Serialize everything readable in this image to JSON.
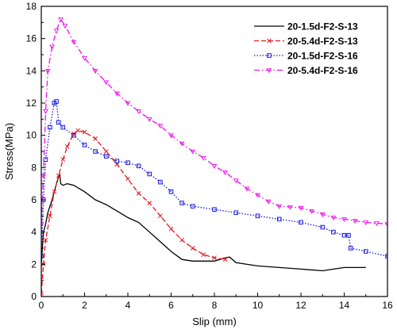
{
  "chart_data": {
    "type": "line",
    "title": "",
    "xlabel": "Slip (mm)",
    "ylabel": "Stress(MPa)",
    "xlim": [
      0,
      16
    ],
    "ylim": [
      0,
      18
    ],
    "xticks": [
      0,
      2,
      4,
      6,
      8,
      10,
      12,
      14,
      16
    ],
    "yticks": [
      0,
      2,
      4,
      6,
      8,
      10,
      12,
      14,
      16,
      18
    ],
    "grid": false,
    "legend_position": "top-right",
    "series": [
      {
        "name": "20-1.5d-F2-S-13",
        "color": "#000000",
        "marker": "none",
        "dash": "solid",
        "points": [
          [
            0,
            2.0
          ],
          [
            0.1,
            4.0
          ],
          [
            0.2,
            4.5
          ],
          [
            0.3,
            5.2
          ],
          [
            0.5,
            6.0
          ],
          [
            0.7,
            7.0
          ],
          [
            0.85,
            7.6
          ],
          [
            0.9,
            7.0
          ],
          [
            1.0,
            6.9
          ],
          [
            1.2,
            7.0
          ],
          [
            1.5,
            6.9
          ],
          [
            2.0,
            6.5
          ],
          [
            2.5,
            6.0
          ],
          [
            3.0,
            5.7
          ],
          [
            3.5,
            5.3
          ],
          [
            4.0,
            4.9
          ],
          [
            4.5,
            4.6
          ],
          [
            5.0,
            4.0
          ],
          [
            5.5,
            3.4
          ],
          [
            6.0,
            2.8
          ],
          [
            6.5,
            2.3
          ],
          [
            7.0,
            2.2
          ],
          [
            8.0,
            2.2
          ],
          [
            8.5,
            2.4
          ],
          [
            8.7,
            2.45
          ],
          [
            9.0,
            2.1
          ],
          [
            10.0,
            1.9
          ],
          [
            11.0,
            1.8
          ],
          [
            12.0,
            1.7
          ],
          [
            13.0,
            1.6
          ],
          [
            14.0,
            1.8
          ],
          [
            15.0,
            1.8
          ]
        ]
      },
      {
        "name": "20-5.4d-F2-S-13",
        "color": "#e8141b",
        "marker": "x",
        "dash": "dashed",
        "points": [
          [
            0,
            0.2
          ],
          [
            0.1,
            2.0
          ],
          [
            0.2,
            3.5
          ],
          [
            0.4,
            5.0
          ],
          [
            0.6,
            6.5
          ],
          [
            0.8,
            7.5
          ],
          [
            1.0,
            8.5
          ],
          [
            1.2,
            9.3
          ],
          [
            1.5,
            10.1
          ],
          [
            1.7,
            10.3
          ],
          [
            2.0,
            10.2
          ],
          [
            2.5,
            9.8
          ],
          [
            3.0,
            9.0
          ],
          [
            3.5,
            8.2
          ],
          [
            4.0,
            7.3
          ],
          [
            4.5,
            6.4
          ],
          [
            5.0,
            5.8
          ],
          [
            5.5,
            5.0
          ],
          [
            6.0,
            4.2
          ],
          [
            6.5,
            3.5
          ],
          [
            7.0,
            3.0
          ],
          [
            7.5,
            2.6
          ],
          [
            8.0,
            2.4
          ],
          [
            8.5,
            2.3
          ]
        ]
      },
      {
        "name": "20-1.5d-F2-S-16",
        "color": "#1a1adf",
        "marker": "square",
        "dash": "dotted",
        "points": [
          [
            0,
            2.5
          ],
          [
            0.1,
            6.0
          ],
          [
            0.2,
            8.5
          ],
          [
            0.4,
            10.5
          ],
          [
            0.6,
            12.0
          ],
          [
            0.7,
            12.1
          ],
          [
            0.8,
            10.8
          ],
          [
            1.0,
            10.5
          ],
          [
            1.5,
            10.0
          ],
          [
            2.0,
            9.4
          ],
          [
            2.5,
            9.0
          ],
          [
            3.0,
            8.7
          ],
          [
            3.5,
            8.4
          ],
          [
            4.0,
            8.3
          ],
          [
            4.5,
            8.1
          ],
          [
            5.0,
            7.6
          ],
          [
            5.5,
            7.1
          ],
          [
            6.0,
            6.5
          ],
          [
            6.5,
            5.8
          ],
          [
            7.0,
            5.6
          ],
          [
            8.0,
            5.4
          ],
          [
            9.0,
            5.2
          ],
          [
            10.0,
            5.0
          ],
          [
            11.0,
            4.8
          ],
          [
            12.0,
            4.6
          ],
          [
            13.0,
            4.3
          ],
          [
            13.5,
            4.0
          ],
          [
            14.0,
            3.8
          ],
          [
            14.2,
            3.8
          ],
          [
            14.3,
            3.0
          ],
          [
            15.0,
            2.8
          ],
          [
            16.0,
            2.5
          ]
        ]
      },
      {
        "name": "20-5.4d-F2-S-16",
        "color": "#ee11ee",
        "marker": "triangle",
        "dash": "dashdot",
        "points": [
          [
            0,
            4.5
          ],
          [
            0.1,
            7.5
          ],
          [
            0.2,
            11.5
          ],
          [
            0.3,
            14.0
          ],
          [
            0.5,
            15.5
          ],
          [
            0.7,
            16.5
          ],
          [
            0.9,
            17.2
          ],
          [
            1.1,
            16.8
          ],
          [
            1.5,
            15.8
          ],
          [
            2.0,
            14.8
          ],
          [
            2.5,
            14.0
          ],
          [
            3.0,
            13.3
          ],
          [
            3.5,
            12.6
          ],
          [
            4.0,
            12.0
          ],
          [
            4.5,
            11.5
          ],
          [
            5.0,
            11.0
          ],
          [
            5.5,
            10.6
          ],
          [
            6.0,
            10.0
          ],
          [
            6.5,
            9.5
          ],
          [
            7.0,
            9.0
          ],
          [
            7.5,
            8.6
          ],
          [
            8.0,
            8.1
          ],
          [
            8.5,
            7.7
          ],
          [
            9.0,
            7.2
          ],
          [
            9.5,
            6.7
          ],
          [
            10.0,
            6.3
          ],
          [
            10.5,
            5.9
          ],
          [
            11.0,
            5.6
          ],
          [
            11.5,
            5.55
          ],
          [
            12.0,
            5.5
          ],
          [
            12.5,
            5.3
          ],
          [
            13.0,
            5.1
          ],
          [
            13.5,
            4.9
          ],
          [
            14.0,
            4.8
          ],
          [
            14.5,
            4.7
          ],
          [
            15.0,
            4.6
          ],
          [
            15.5,
            4.55
          ],
          [
            16.0,
            4.5
          ]
        ]
      }
    ]
  }
}
